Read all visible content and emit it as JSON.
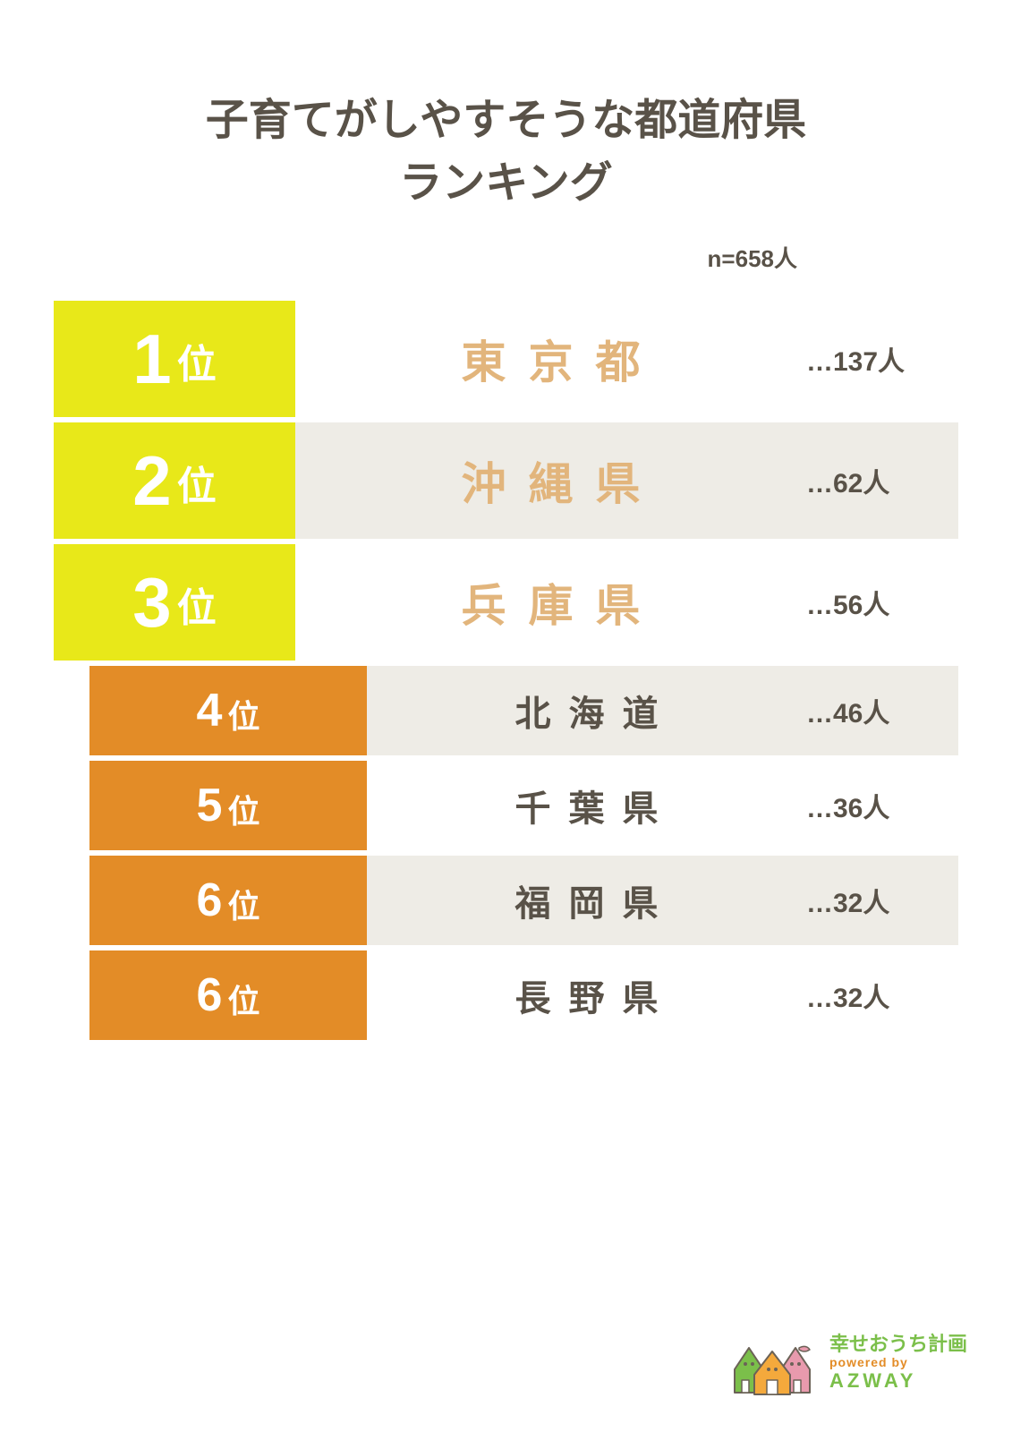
{
  "title_line1": "子育てがしやすそうな都道府県",
  "title_line2": "ランキング",
  "title_color": "#595248",
  "title_fontsize": 48,
  "sample_size_text": "n=658人",
  "sample_size_color": "#595248",
  "sample_size_fontsize": 26,
  "count_prefix": "…",
  "count_suffix": "人",
  "count_color": "#595248",
  "count_fontsize": 30,
  "rank_suffix": "位",
  "background_color": "#ffffff",
  "row_gap": 6,
  "top_rank_cell_width": 270,
  "lower_rank_cell_width": 310,
  "top_row_height": 130,
  "lower_row_height": 100,
  "top_rank_num_fontsize": 78,
  "top_rank_suffix_fontsize": 44,
  "lower_rank_num_fontsize": 52,
  "lower_rank_suffix_fontsize": 36,
  "lower_rank_left_indent": 40,
  "ranks": [
    {
      "rank": 1,
      "name": "東京都",
      "count": 137,
      "rank_bg": "#e8e819",
      "name_bg": "#ffffff",
      "name_color": "#e2b57c",
      "name_fontsize": 50
    },
    {
      "rank": 2,
      "name": "沖縄県",
      "count": 62,
      "rank_bg": "#e8e819",
      "name_bg": "#eeece6",
      "name_color": "#e2b57c",
      "name_fontsize": 50
    },
    {
      "rank": 3,
      "name": "兵庫県",
      "count": 56,
      "rank_bg": "#e8e819",
      "name_bg": "#ffffff",
      "name_color": "#e2b57c",
      "name_fontsize": 50
    },
    {
      "rank": 4,
      "name": "北海道",
      "count": 46,
      "rank_bg": "#e38c27",
      "name_bg": "#eeece6",
      "name_color": "#595248",
      "name_fontsize": 40
    },
    {
      "rank": 5,
      "name": "千葉県",
      "count": 36,
      "rank_bg": "#e38c27",
      "name_bg": "#ffffff",
      "name_color": "#595248",
      "name_fontsize": 40
    },
    {
      "rank": 6,
      "name": "福岡県",
      "count": 32,
      "rank_bg": "#e38c27",
      "name_bg": "#eeece6",
      "name_color": "#595248",
      "name_fontsize": 40
    },
    {
      "rank": 6,
      "name": "長野県",
      "count": 32,
      "rank_bg": "#e38c27",
      "name_bg": "#ffffff",
      "name_color": "#595248",
      "name_fontsize": 40
    }
  ],
  "logo": {
    "line1": "幸せおうち計画",
    "line2": "powered by",
    "line3": "AZWAY",
    "line1_color": "#7bbf4a",
    "line2_color": "#e38c27",
    "line3_color": "#7bbf4a",
    "line1_fontsize": 22,
    "line3_fontsize": 22,
    "house_green": "#7bbf4a",
    "house_orange": "#f4a93c",
    "house_pink": "#e89aad",
    "house_outline": "#6b6257"
  }
}
